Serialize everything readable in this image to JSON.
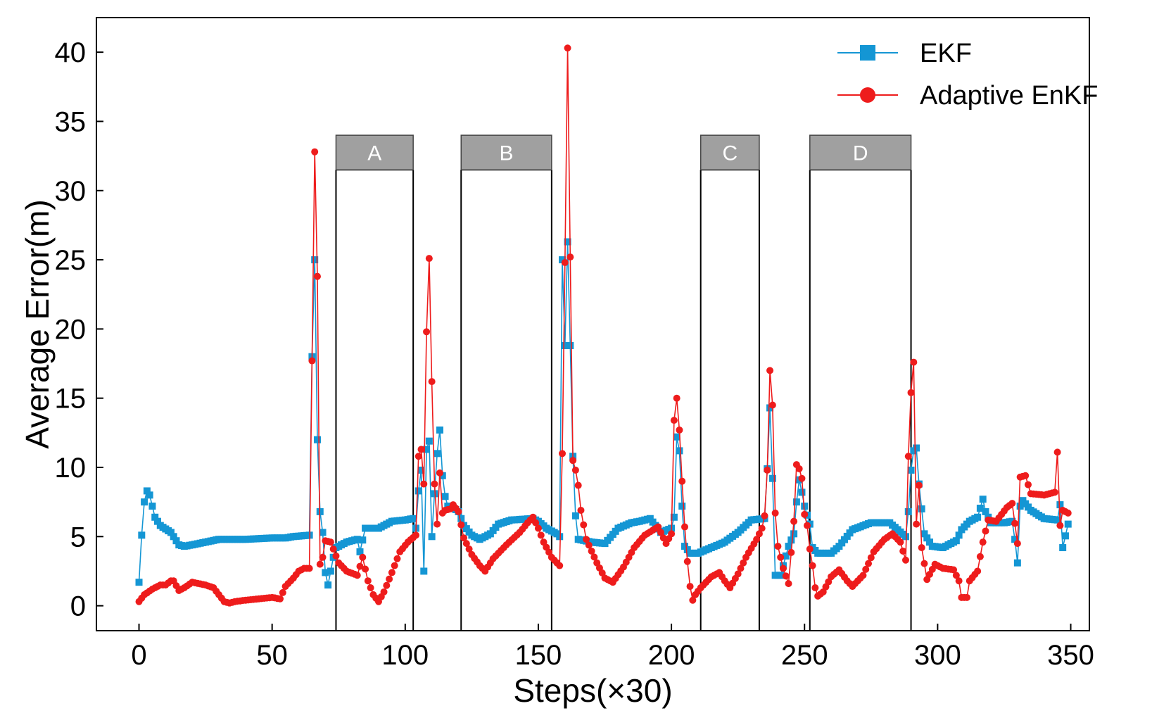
{
  "chart_data": {
    "type": "line",
    "xlabel": "Steps(×30)",
    "ylabel": "Average Error(m)",
    "xlim": [
      -16,
      357
    ],
    "ylim": [
      -1.8,
      42.5
    ],
    "xticks": [
      0,
      50,
      100,
      150,
      200,
      250,
      300,
      350
    ],
    "yticks": [
      0,
      5,
      10,
      15,
      20,
      25,
      30,
      35,
      40
    ],
    "xtick_labels": [
      "0",
      "50",
      "100",
      "150",
      "200",
      "250",
      "300",
      "350"
    ],
    "ytick_labels": [
      "0",
      "5",
      "10",
      "15",
      "20",
      "25",
      "30",
      "35",
      "40"
    ],
    "legend_position": "top-right",
    "regions": [
      {
        "label": "A",
        "x_start": 74,
        "x_end": 103
      },
      {
        "label": "B",
        "x_start": 121,
        "x_end": 155
      },
      {
        "label": "C",
        "x_start": 211,
        "x_end": 233
      },
      {
        "label": "D",
        "x_start": 252,
        "x_end": 290
      }
    ],
    "region_box_top": 31.5,
    "region_label_box": [
      31.5,
      34.0
    ],
    "series": [
      {
        "name": "EKF",
        "color": "#1496d4",
        "marker": "square",
        "keypoints": [
          [
            0,
            1.7
          ],
          [
            1,
            5.1
          ],
          [
            2,
            7.5
          ],
          [
            3,
            8.3
          ],
          [
            4,
            8.0
          ],
          [
            5,
            7.2
          ],
          [
            6,
            6.4
          ],
          [
            8,
            5.8
          ],
          [
            12,
            5.3
          ],
          [
            15,
            4.4
          ],
          [
            17,
            4.3
          ],
          [
            20,
            4.4
          ],
          [
            25,
            4.6
          ],
          [
            30,
            4.8
          ],
          [
            40,
            4.8
          ],
          [
            50,
            4.9
          ],
          [
            55,
            4.9
          ],
          [
            58,
            5.0
          ],
          [
            64,
            5.1
          ],
          [
            65,
            18.0
          ],
          [
            66,
            25.0
          ],
          [
            67,
            12.0
          ],
          [
            68,
            6.8
          ],
          [
            69,
            5.3
          ],
          [
            70,
            2.4
          ],
          [
            71,
            1.5
          ],
          [
            72,
            2.5
          ],
          [
            73,
            3.5
          ],
          [
            74,
            4.2
          ],
          [
            78,
            4.6
          ],
          [
            82,
            4.8
          ],
          [
            83,
            3.9
          ],
          [
            85,
            5.6
          ],
          [
            90,
            5.6
          ],
          [
            95,
            6.1
          ],
          [
            100,
            6.2
          ],
          [
            103,
            6.3
          ],
          [
            104,
            5.6
          ],
          [
            105,
            8.3
          ],
          [
            106,
            9.8
          ],
          [
            107,
            2.5
          ],
          [
            108,
            11.3
          ],
          [
            109,
            11.9
          ],
          [
            110,
            5.0
          ],
          [
            111,
            8.1
          ],
          [
            112,
            11.0
          ],
          [
            113,
            12.7
          ],
          [
            114,
            9.4
          ],
          [
            115,
            7.9
          ],
          [
            116,
            7.2
          ],
          [
            118,
            7.1
          ],
          [
            120,
            6.8
          ],
          [
            122,
            5.8
          ],
          [
            125,
            5.1
          ],
          [
            128,
            4.8
          ],
          [
            132,
            5.2
          ],
          [
            135,
            5.9
          ],
          [
            140,
            6.2
          ],
          [
            148,
            6.3
          ],
          [
            150,
            6.1
          ],
          [
            153,
            5.6
          ],
          [
            157,
            5.2
          ],
          [
            158,
            5.0
          ],
          [
            159,
            25.0
          ],
          [
            160,
            18.8
          ],
          [
            161,
            26.3
          ],
          [
            162,
            18.8
          ],
          [
            163,
            10.8
          ],
          [
            164,
            6.5
          ],
          [
            165,
            4.8
          ],
          [
            170,
            4.6
          ],
          [
            175,
            4.5
          ],
          [
            180,
            5.6
          ],
          [
            185,
            6.0
          ],
          [
            188,
            6.1
          ],
          [
            192,
            6.3
          ],
          [
            196,
            5.3
          ],
          [
            200,
            5.6
          ],
          [
            201,
            6.4
          ],
          [
            202,
            12.2
          ],
          [
            203,
            11.2
          ],
          [
            204,
            7.2
          ],
          [
            205,
            4.3
          ],
          [
            207,
            3.8
          ],
          [
            210,
            3.8
          ],
          [
            215,
            4.2
          ],
          [
            220,
            4.6
          ],
          [
            225,
            5.3
          ],
          [
            230,
            6.2
          ],
          [
            235,
            6.3
          ],
          [
            236,
            9.9
          ],
          [
            237,
            14.3
          ],
          [
            238,
            9.2
          ],
          [
            239,
            2.2
          ],
          [
            241,
            2.2
          ],
          [
            244,
            4.3
          ],
          [
            246,
            5.2
          ],
          [
            247,
            7.5
          ],
          [
            248,
            9.1
          ],
          [
            249,
            8.2
          ],
          [
            250,
            7.2
          ],
          [
            252,
            5.9
          ],
          [
            253,
            4.2
          ],
          [
            255,
            3.8
          ],
          [
            260,
            3.8
          ],
          [
            263,
            4.3
          ],
          [
            268,
            5.5
          ],
          [
            275,
            6.0
          ],
          [
            282,
            6.0
          ],
          [
            288,
            5.0
          ],
          [
            289,
            6.8
          ],
          [
            290,
            9.8
          ],
          [
            291,
            11.2
          ],
          [
            292,
            11.4
          ],
          [
            293,
            8.8
          ],
          [
            295,
            5.2
          ],
          [
            298,
            4.3
          ],
          [
            302,
            4.2
          ],
          [
            307,
            4.7
          ],
          [
            309,
            5.5
          ],
          [
            312,
            6.1
          ],
          [
            315,
            6.4
          ],
          [
            317,
            7.7
          ],
          [
            318,
            6.8
          ],
          [
            320,
            6.0
          ],
          [
            325,
            6.0
          ],
          [
            328,
            6.1
          ],
          [
            329,
            4.8
          ],
          [
            330,
            3.1
          ],
          [
            331,
            7.2
          ],
          [
            332,
            7.6
          ],
          [
            335,
            6.9
          ],
          [
            340,
            6.3
          ],
          [
            345,
            6.2
          ],
          [
            346,
            7.3
          ],
          [
            347,
            4.2
          ],
          [
            349,
            5.9
          ]
        ]
      },
      {
        "name": "Adaptive EnKF",
        "color": "#ee1c1c",
        "marker": "circle",
        "keypoints": [
          [
            0,
            0.3
          ],
          [
            2,
            0.8
          ],
          [
            5,
            1.2
          ],
          [
            8,
            1.5
          ],
          [
            10,
            1.5
          ],
          [
            12,
            1.8
          ],
          [
            13,
            1.8
          ],
          [
            15,
            1.1
          ],
          [
            17,
            1.3
          ],
          [
            20,
            1.7
          ],
          [
            25,
            1.5
          ],
          [
            28,
            1.3
          ],
          [
            30,
            0.8
          ],
          [
            32,
            0.3
          ],
          [
            34,
            0.2
          ],
          [
            36,
            0.3
          ],
          [
            40,
            0.4
          ],
          [
            45,
            0.5
          ],
          [
            50,
            0.6
          ],
          [
            53,
            0.5
          ],
          [
            55,
            1.4
          ],
          [
            58,
            2.0
          ],
          [
            60,
            2.5
          ],
          [
            62,
            2.7
          ],
          [
            64,
            2.7
          ],
          [
            65,
            17.7
          ],
          [
            66,
            32.8
          ],
          [
            67,
            23.8
          ],
          [
            68,
            3.0
          ],
          [
            69,
            3.5
          ],
          [
            70,
            4.7
          ],
          [
            72,
            4.6
          ],
          [
            75,
            3.1
          ],
          [
            78,
            2.5
          ],
          [
            82,
            2.2
          ],
          [
            84,
            3.5
          ],
          [
            86,
            1.8
          ],
          [
            88,
            0.8
          ],
          [
            90,
            0.3
          ],
          [
            92,
            1.0
          ],
          [
            95,
            2.4
          ],
          [
            98,
            3.9
          ],
          [
            101,
            4.6
          ],
          [
            104,
            5.1
          ],
          [
            105,
            10.8
          ],
          [
            106,
            11.3
          ],
          [
            107,
            8.8
          ],
          [
            108,
            19.8
          ],
          [
            109,
            25.1
          ],
          [
            110,
            16.2
          ],
          [
            111,
            8.8
          ],
          [
            112,
            5.9
          ],
          [
            113,
            9.6
          ],
          [
            114,
            6.7
          ],
          [
            115,
            6.9
          ],
          [
            117,
            7.0
          ],
          [
            118,
            7.3
          ],
          [
            120,
            6.8
          ],
          [
            122,
            4.9
          ],
          [
            125,
            3.7
          ],
          [
            128,
            2.9
          ],
          [
            130,
            2.5
          ],
          [
            133,
            3.4
          ],
          [
            138,
            4.4
          ],
          [
            143,
            5.3
          ],
          [
            146,
            6.0
          ],
          [
            148,
            6.4
          ],
          [
            150,
            5.6
          ],
          [
            152,
            4.6
          ],
          [
            155,
            3.5
          ],
          [
            158,
            2.9
          ],
          [
            159,
            11.0
          ],
          [
            160,
            24.8
          ],
          [
            161,
            40.3
          ],
          [
            162,
            25.2
          ],
          [
            163,
            10.5
          ],
          [
            164,
            9.8
          ],
          [
            165,
            8.7
          ],
          [
            166,
            6.9
          ],
          [
            168,
            4.8
          ],
          [
            172,
            3.1
          ],
          [
            175,
            2.0
          ],
          [
            178,
            1.7
          ],
          [
            182,
            2.8
          ],
          [
            186,
            4.2
          ],
          [
            190,
            5.1
          ],
          [
            195,
            5.7
          ],
          [
            198,
            4.5
          ],
          [
            200,
            5.2
          ],
          [
            201,
            13.4
          ],
          [
            202,
            15.0
          ],
          [
            203,
            12.7
          ],
          [
            204,
            9.0
          ],
          [
            205,
            5.7
          ],
          [
            206,
            3.2
          ],
          [
            207,
            1.4
          ],
          [
            208,
            0.4
          ],
          [
            209,
            0.8
          ],
          [
            211,
            1.3
          ],
          [
            215,
            2.1
          ],
          [
            218,
            2.4
          ],
          [
            220,
            1.8
          ],
          [
            222,
            1.3
          ],
          [
            225,
            2.3
          ],
          [
            228,
            3.5
          ],
          [
            232,
            4.8
          ],
          [
            234,
            5.6
          ],
          [
            235,
            6.5
          ],
          [
            236,
            9.8
          ],
          [
            237,
            17.0
          ],
          [
            238,
            14.5
          ],
          [
            239,
            6.7
          ],
          [
            240,
            4.3
          ],
          [
            242,
            2.7
          ],
          [
            244,
            1.6
          ],
          [
            246,
            6.1
          ],
          [
            247,
            10.2
          ],
          [
            248,
            9.9
          ],
          [
            249,
            9.2
          ],
          [
            250,
            6.6
          ],
          [
            251,
            5.8
          ],
          [
            252,
            4.1
          ],
          [
            253,
            2.9
          ],
          [
            254,
            1.3
          ],
          [
            255,
            0.7
          ],
          [
            257,
            1.0
          ],
          [
            260,
            2.1
          ],
          [
            263,
            2.6
          ],
          [
            266,
            1.8
          ],
          [
            268,
            1.4
          ],
          [
            272,
            2.2
          ],
          [
            276,
            3.9
          ],
          [
            280,
            4.8
          ],
          [
            283,
            5.2
          ],
          [
            286,
            4.6
          ],
          [
            288,
            3.3
          ],
          [
            289,
            10.8
          ],
          [
            290,
            15.4
          ],
          [
            291,
            17.6
          ],
          [
            292,
            5.9
          ],
          [
            293,
            8.7
          ],
          [
            294,
            4.2
          ],
          [
            296,
            1.9
          ],
          [
            299,
            3.0
          ],
          [
            302,
            2.7
          ],
          [
            306,
            2.6
          ],
          [
            308,
            1.8
          ],
          [
            309,
            0.6
          ],
          [
            311,
            0.6
          ],
          [
            312,
            1.8
          ],
          [
            315,
            2.5
          ],
          [
            317,
            4.6
          ],
          [
            319,
            6.2
          ],
          [
            322,
            6.1
          ],
          [
            326,
            7.1
          ],
          [
            328,
            7.4
          ],
          [
            330,
            4.5
          ],
          [
            331,
            9.3
          ],
          [
            333,
            9.4
          ],
          [
            335,
            8.1
          ],
          [
            340,
            8.0
          ],
          [
            344,
            8.2
          ],
          [
            345,
            11.1
          ],
          [
            346,
            5.8
          ],
          [
            347,
            6.9
          ],
          [
            349,
            6.7
          ]
        ]
      }
    ]
  }
}
